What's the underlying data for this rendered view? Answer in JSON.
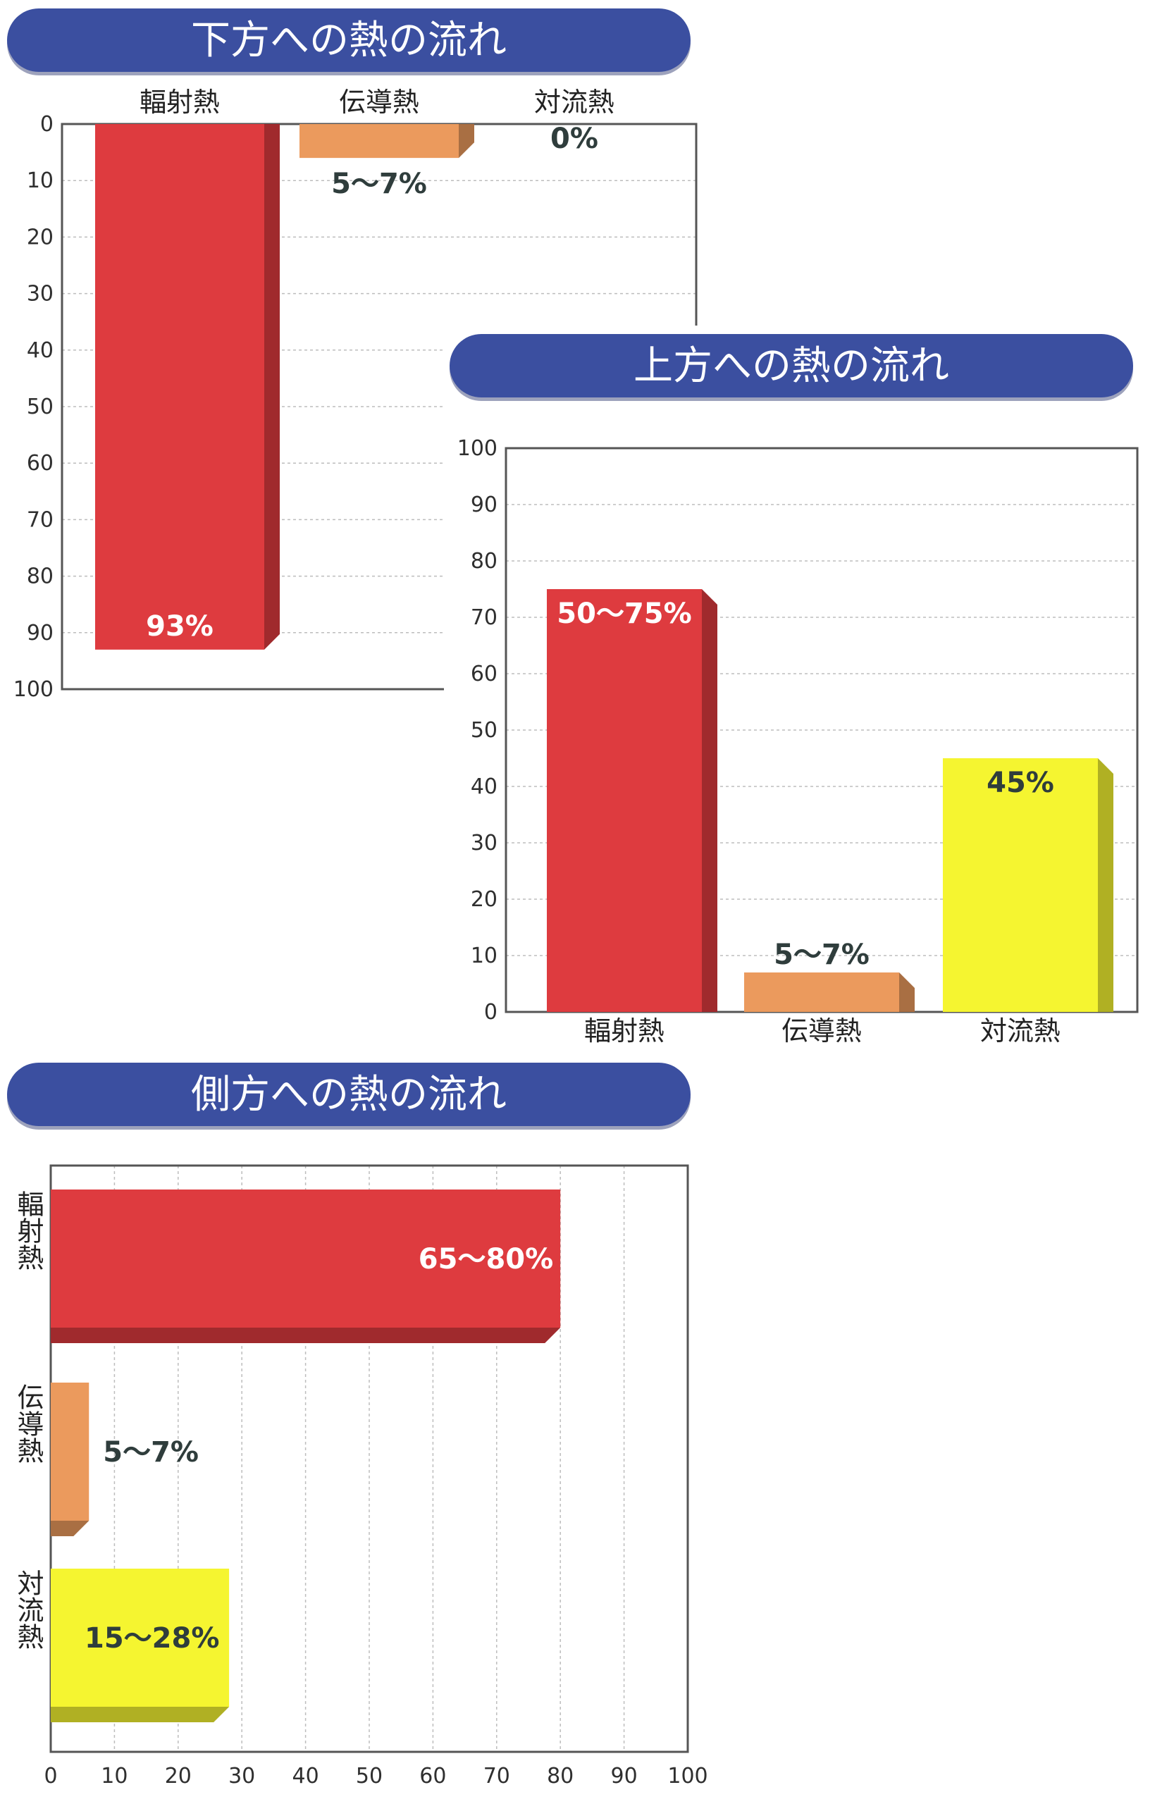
{
  "colors": {
    "title_bg": "#3b4fa0",
    "radiation": "#de3b3f",
    "conduction": "#eb9a5d",
    "convection": "#f5f530",
    "label_dark": "#2f3d3c",
    "label_light": "#ffffff"
  },
  "chart_data": [
    {
      "id": "downward",
      "type": "bar",
      "orientation": "vertical-down",
      "title": "下方への熱の流れ",
      "categories": [
        "輻射熱",
        "伝導熱",
        "対流熱"
      ],
      "values": [
        93,
        6,
        0
      ],
      "value_labels": [
        "93%",
        "5〜7%",
        "0%"
      ],
      "ylim": [
        0,
        100
      ],
      "ticks": [
        0,
        10,
        20,
        30,
        40,
        50,
        60,
        70,
        80,
        90,
        100
      ],
      "grid": true
    },
    {
      "id": "upward",
      "type": "bar",
      "orientation": "vertical",
      "title": "上方への熱の流れ",
      "categories": [
        "輻射熱",
        "伝導熱",
        "対流熱"
      ],
      "values": [
        75,
        7,
        45
      ],
      "value_labels": [
        "50〜75%",
        "5〜7%",
        "45%"
      ],
      "ylim": [
        0,
        100
      ],
      "ticks": [
        0,
        10,
        20,
        30,
        40,
        50,
        60,
        70,
        80,
        90,
        100
      ],
      "grid": true
    },
    {
      "id": "sideways",
      "type": "bar",
      "orientation": "horizontal",
      "title": "側方への熱の流れ",
      "categories": [
        "輻射熱",
        "伝導熱",
        "対流熱"
      ],
      "values": [
        80,
        6,
        28
      ],
      "value_labels": [
        "65〜80%",
        "5〜7%",
        "15〜28%"
      ],
      "xlim": [
        0,
        100
      ],
      "ticks": [
        0,
        10,
        20,
        30,
        40,
        50,
        60,
        70,
        80,
        90,
        100
      ],
      "grid": true
    }
  ]
}
